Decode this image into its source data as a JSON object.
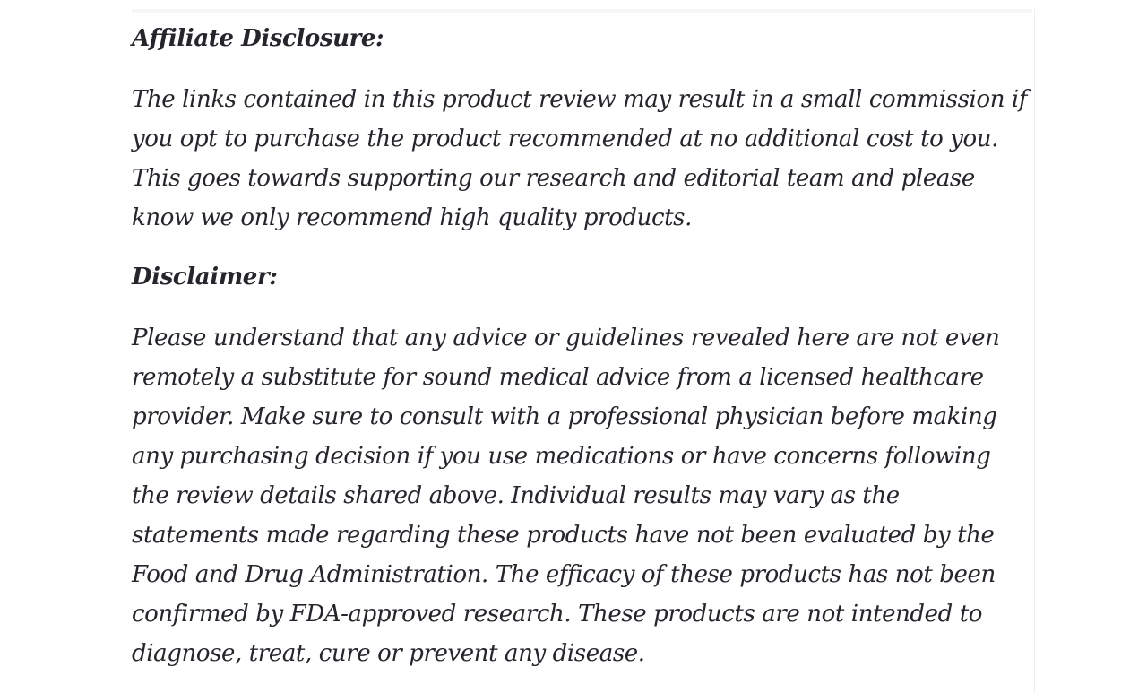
{
  "colors": {
    "background": "#ffffff",
    "text": "#24262b",
    "divider": "#ededed",
    "strip": "#f6f6f6"
  },
  "article": {
    "affiliate": {
      "heading": "Affiliate Disclosure:",
      "body": "The links contained in this product review may result in a small commission if you opt to purchase the product recommended at no additional cost to you. This goes towards supporting our research and editorial team and please know we only recommend high quality products."
    },
    "disclaimer": {
      "heading": "Disclaimer:",
      "body": "Please understand that any advice or guidelines revealed here are not even remotely a substitute for sound medical advice from a licensed healthcare provider. Make sure to consult with a professional physician before making any purchasing decision if you use medications or have concerns following the review details shared above. Individual results may vary as the statements made regarding these products have not been evaluated by the Food and Drug Administration. The efficacy of these products has not been confirmed by FDA-approved research. These products are not intended to diagnose, treat, cure or prevent any disease."
    }
  }
}
